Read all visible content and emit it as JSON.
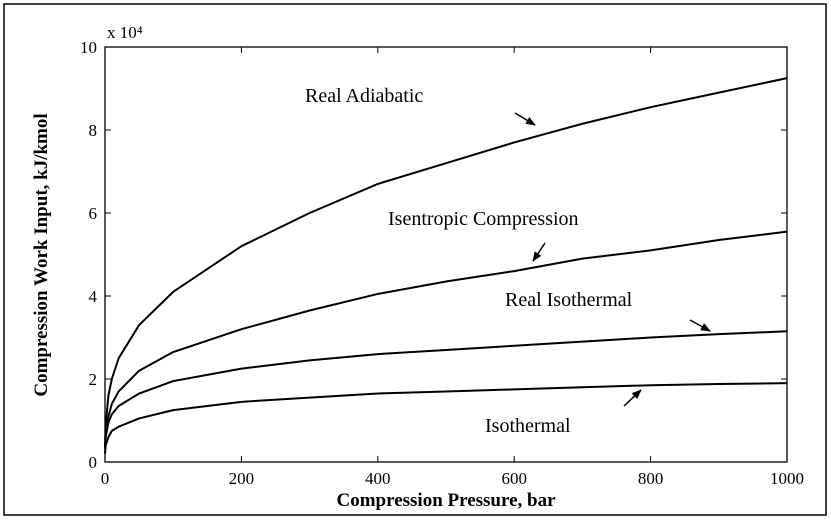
{
  "chart_data": {
    "type": "line",
    "xlabel": "Compression Pressure, bar",
    "ylabel": "Compression Work Input, kJ/kmol",
    "y_multiplier": "x 10⁴",
    "x": [
      0,
      1,
      5,
      10,
      20,
      50,
      100,
      200,
      300,
      400,
      500,
      600,
      700,
      800,
      900,
      1000
    ],
    "series": [
      {
        "name": "Real Adiabatic",
        "color": "#000000",
        "values": [
          0.3,
          0.9,
          1.6,
          2.0,
          2.5,
          3.3,
          4.1,
          5.2,
          6.0,
          6.7,
          7.2,
          7.7,
          8.15,
          8.55,
          8.9,
          9.25
        ]
      },
      {
        "name": "Isentropic Compression",
        "color": "#000000",
        "values": [
          0.3,
          0.7,
          1.1,
          1.4,
          1.7,
          2.2,
          2.65,
          3.2,
          3.65,
          4.05,
          4.35,
          4.6,
          4.9,
          5.1,
          5.35,
          5.55
        ]
      },
      {
        "name": "Real Isothermal",
        "color": "#000000",
        "values": [
          0.3,
          0.6,
          0.95,
          1.15,
          1.35,
          1.65,
          1.95,
          2.25,
          2.45,
          2.6,
          2.7,
          2.8,
          2.9,
          3.0,
          3.08,
          3.15
        ]
      },
      {
        "name": "Isothermal",
        "color": "#000000",
        "values": [
          0.2,
          0.4,
          0.6,
          0.75,
          0.85,
          1.05,
          1.25,
          1.45,
          1.55,
          1.65,
          1.7,
          1.75,
          1.8,
          1.85,
          1.88,
          1.9
        ]
      }
    ],
    "xlim": [
      0,
      1000
    ],
    "xticks": [
      0,
      200,
      400,
      600,
      800,
      1000
    ],
    "ylim": [
      0,
      10
    ],
    "yticks": [
      0,
      2,
      4,
      6,
      8,
      10
    ],
    "grid": false,
    "legend": false
  }
}
